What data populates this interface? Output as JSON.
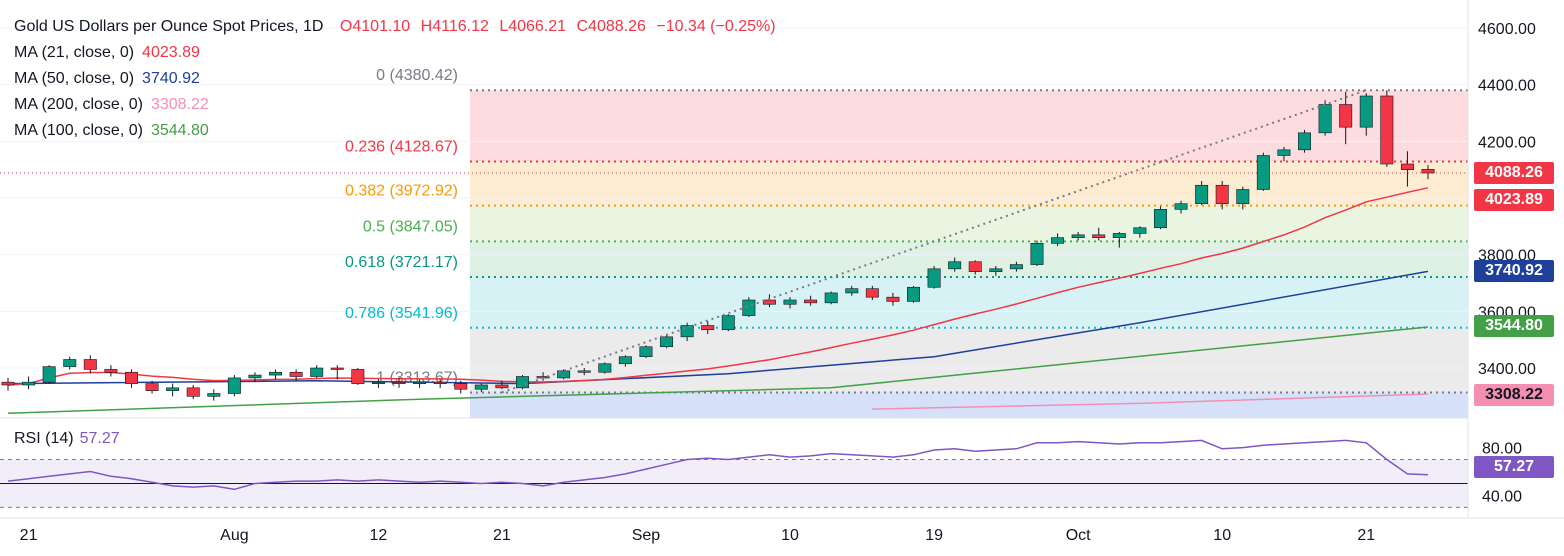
{
  "header": {
    "title": "Gold US Dollars per Ounce Spot Prices, 1D",
    "open": "O4101.10",
    "high": "H4116.12",
    "low": "L4066.21",
    "close": "C4088.26",
    "change": "−10.34 (−0.25%)",
    "change_color": "#f23645"
  },
  "moving_averages": [
    {
      "label": "MA (21, close, 0)",
      "value": "4023.89",
      "color": "#f23645",
      "tag": "4023.89"
    },
    {
      "label": "MA (50, close, 0)",
      "value": "3740.92",
      "color": "#1e3f9a",
      "tag": "3740.92"
    },
    {
      "label": "MA (200, close, 0)",
      "value": "3308.22",
      "color": "#f48fb1",
      "tag": "3308.22"
    },
    {
      "label": "MA (100, close, 0)",
      "value": "3544.80",
      "color": "#43a047",
      "tag": "3544.80"
    }
  ],
  "last_price": {
    "value": "4088.26",
    "color": "#f23645"
  },
  "rsi": {
    "label": "RSI (14)",
    "value": "57.27",
    "color": "#7e57c2"
  },
  "chart_data": [
    {
      "type": "candlestick",
      "title": "Gold US Dollars per Ounce Spot Prices, 1D",
      "ylim": [
        3255,
        4620
      ],
      "y_ticks": [
        "3400.00",
        "3600.00",
        "3800.00",
        "4000.00",
        "4200.00",
        "4400.00",
        "4600.00"
      ],
      "x_ticks": [
        "21",
        "Aug",
        "12",
        "21",
        "Sep",
        "10",
        "19",
        "Oct",
        "10",
        "21"
      ],
      "fibonacci": [
        {
          "label": "0 (4380.42)",
          "level": 4380.42,
          "color": "#787b86"
        },
        {
          "label": "0.236 (4128.67)",
          "level": 4128.67,
          "color": "#f23645"
        },
        {
          "label": "0.382 (3972.92)",
          "level": 3972.92,
          "color": "#ff9800"
        },
        {
          "label": "0.5 (3847.05)",
          "level": 3847.05,
          "color": "#4caf50"
        },
        {
          "label": "0.618 (3721.17)",
          "level": 3721.17,
          "color": "#089981"
        },
        {
          "label": "0.786 (3541.96)",
          "level": 3541.96,
          "color": "#00bcd4"
        },
        {
          "label": "1 (3313.67)",
          "level": 3313.67,
          "color": "#787b86"
        }
      ],
      "ohlc": [
        [
          3350,
          3365,
          3320,
          3340
        ],
        [
          3340,
          3370,
          3325,
          3350
        ],
        [
          3350,
          3410,
          3345,
          3405
        ],
        [
          3405,
          3440,
          3395,
          3430
        ],
        [
          3430,
          3445,
          3380,
          3395
        ],
        [
          3395,
          3410,
          3370,
          3385
        ],
        [
          3385,
          3395,
          3330,
          3345
        ],
        [
          3345,
          3355,
          3310,
          3320
        ],
        [
          3320,
          3345,
          3300,
          3330
        ],
        [
          3330,
          3340,
          3290,
          3300
        ],
        [
          3300,
          3325,
          3285,
          3310
        ],
        [
          3310,
          3375,
          3300,
          3365
        ],
        [
          3365,
          3385,
          3350,
          3375
        ],
        [
          3375,
          3395,
          3360,
          3385
        ],
        [
          3385,
          3395,
          3355,
          3370
        ],
        [
          3370,
          3410,
          3365,
          3400
        ],
        [
          3400,
          3410,
          3360,
          3395
        ],
        [
          3395,
          3400,
          3340,
          3345
        ],
        [
          3345,
          3360,
          3330,
          3350
        ],
        [
          3350,
          3365,
          3330,
          3345
        ],
        [
          3345,
          3360,
          3330,
          3350
        ],
        [
          3350,
          3360,
          3330,
          3345
        ],
        [
          3345,
          3355,
          3310,
          3325
        ],
        [
          3325,
          3345,
          3315,
          3340
        ],
        [
          3340,
          3355,
          3325,
          3330
        ],
        [
          3330,
          3375,
          3325,
          3370
        ],
        [
          3370,
          3385,
          3355,
          3365
        ],
        [
          3365,
          3395,
          3360,
          3390
        ],
        [
          3390,
          3400,
          3375,
          3385
        ],
        [
          3385,
          3420,
          3380,
          3415
        ],
        [
          3415,
          3445,
          3405,
          3440
        ],
        [
          3440,
          3480,
          3435,
          3475
        ],
        [
          3475,
          3520,
          3470,
          3510
        ],
        [
          3510,
          3560,
          3495,
          3550
        ],
        [
          3550,
          3565,
          3520,
          3535
        ],
        [
          3535,
          3590,
          3530,
          3585
        ],
        [
          3585,
          3650,
          3580,
          3640
        ],
        [
          3640,
          3660,
          3615,
          3625
        ],
        [
          3625,
          3650,
          3610,
          3640
        ],
        [
          3640,
          3655,
          3620,
          3630
        ],
        [
          3630,
          3670,
          3625,
          3665
        ],
        [
          3665,
          3690,
          3655,
          3680
        ],
        [
          3680,
          3690,
          3640,
          3650
        ],
        [
          3650,
          3665,
          3620,
          3635
        ],
        [
          3635,
          3690,
          3630,
          3685
        ],
        [
          3685,
          3760,
          3680,
          3750
        ],
        [
          3750,
          3790,
          3740,
          3775
        ],
        [
          3775,
          3780,
          3730,
          3740
        ],
        [
          3740,
          3760,
          3725,
          3750
        ],
        [
          3750,
          3775,
          3740,
          3765
        ],
        [
          3765,
          3850,
          3760,
          3840
        ],
        [
          3840,
          3875,
          3830,
          3860
        ],
        [
          3860,
          3880,
          3850,
          3870
        ],
        [
          3870,
          3895,
          3850,
          3860
        ],
        [
          3860,
          3880,
          3825,
          3875
        ],
        [
          3875,
          3900,
          3860,
          3895
        ],
        [
          3895,
          3970,
          3890,
          3960
        ],
        [
          3960,
          3990,
          3945,
          3980
        ],
        [
          3980,
          4060,
          3975,
          4045
        ],
        [
          4045,
          4060,
          3960,
          3980
        ],
        [
          3980,
          4040,
          3960,
          4030
        ],
        [
          4030,
          4160,
          4025,
          4150
        ],
        [
          4150,
          4180,
          4130,
          4170
        ],
        [
          4170,
          4240,
          4160,
          4230
        ],
        [
          4230,
          4345,
          4220,
          4330
        ],
        [
          4330,
          4375,
          4190,
          4250
        ],
        [
          4250,
          4370,
          4220,
          4360
        ],
        [
          4360,
          4380,
          4110,
          4120
        ],
        [
          4120,
          4165,
          4040,
          4100
        ],
        [
          4101.1,
          4116.12,
          4066.21,
          4088.26
        ]
      ]
    },
    {
      "type": "line",
      "title": "RSI (14)",
      "ylim": [
        32,
        88
      ],
      "y_ticks": [
        "40.00",
        "80.00"
      ],
      "bands": [
        30,
        70
      ],
      "values": [
        52,
        54,
        56,
        58,
        60,
        56,
        54,
        51,
        48,
        47,
        48,
        45,
        50,
        51,
        52,
        52,
        53,
        52,
        53,
        52,
        51,
        52,
        51,
        50,
        51,
        50,
        48,
        51,
        53,
        55,
        58,
        62,
        66,
        70,
        71,
        70,
        72,
        74,
        72,
        73,
        75,
        74,
        73,
        72,
        74,
        78,
        79,
        77,
        78,
        79,
        84,
        84,
        85,
        84,
        83,
        84,
        84,
        85,
        86,
        79,
        80,
        82,
        83,
        84,
        85,
        86,
        84,
        70,
        58,
        57.27
      ]
    }
  ]
}
